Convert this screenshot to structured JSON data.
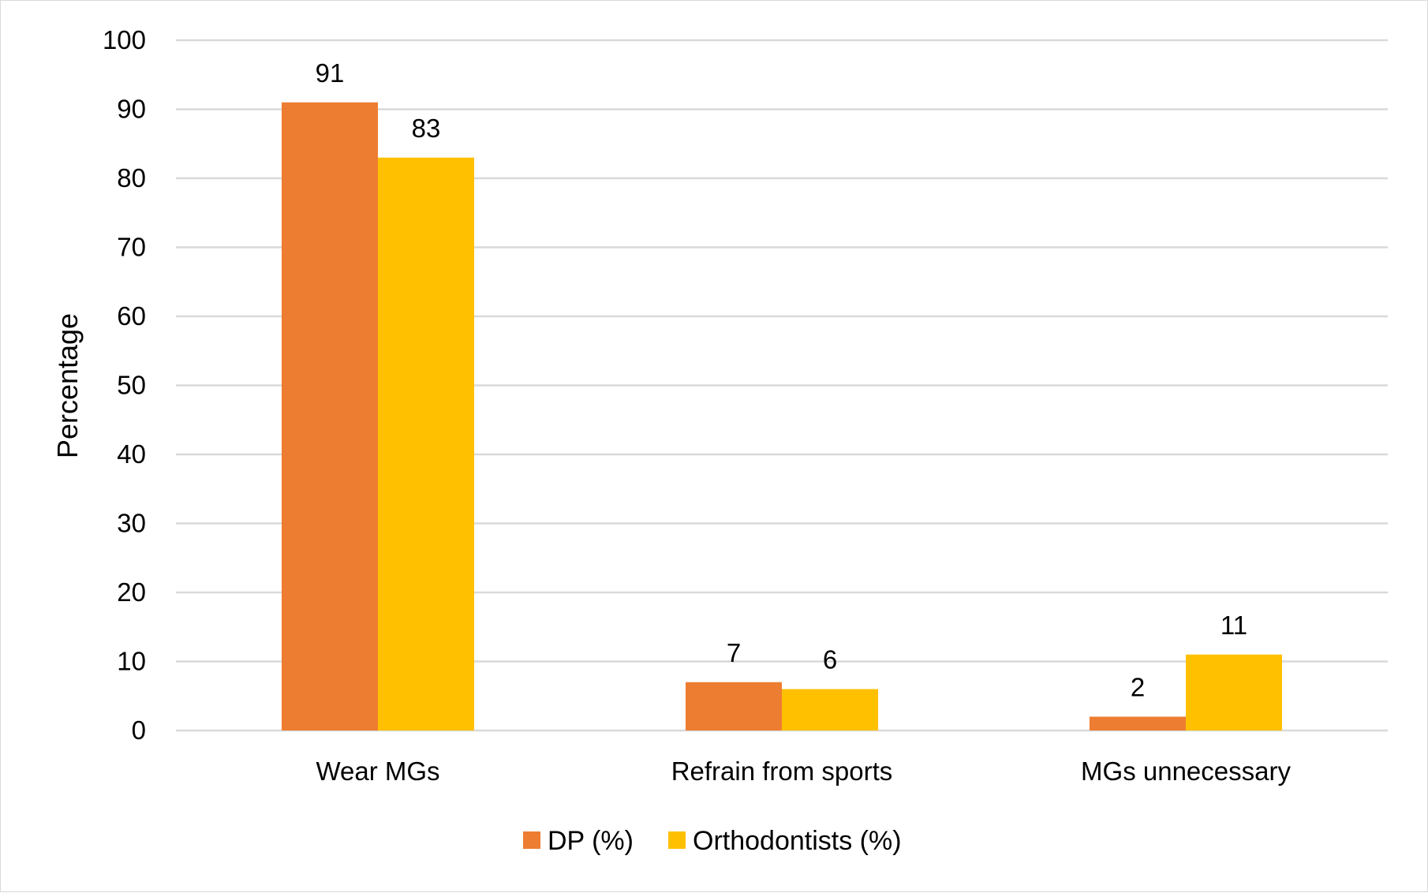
{
  "chart_data": {
    "type": "bar",
    "title": "",
    "xlabel": "",
    "ylabel": "Percentage",
    "categories": [
      "Wear MGs",
      "Refrain from sports",
      "MGs unnecessary"
    ],
    "series": [
      {
        "name": "DP (%)",
        "values": [
          91,
          7,
          2
        ],
        "color": "#ED7D31"
      },
      {
        "name": "Orthodontists (%)",
        "values": [
          83,
          6,
          11
        ],
        "color": "#FFC000"
      }
    ],
    "ylim": [
      0,
      100
    ],
    "yticks": [
      0,
      10,
      20,
      30,
      40,
      50,
      60,
      70,
      80,
      90,
      100
    ],
    "grid": true,
    "gridline_color": "#d9d9d9",
    "legend_position": "bottom"
  }
}
